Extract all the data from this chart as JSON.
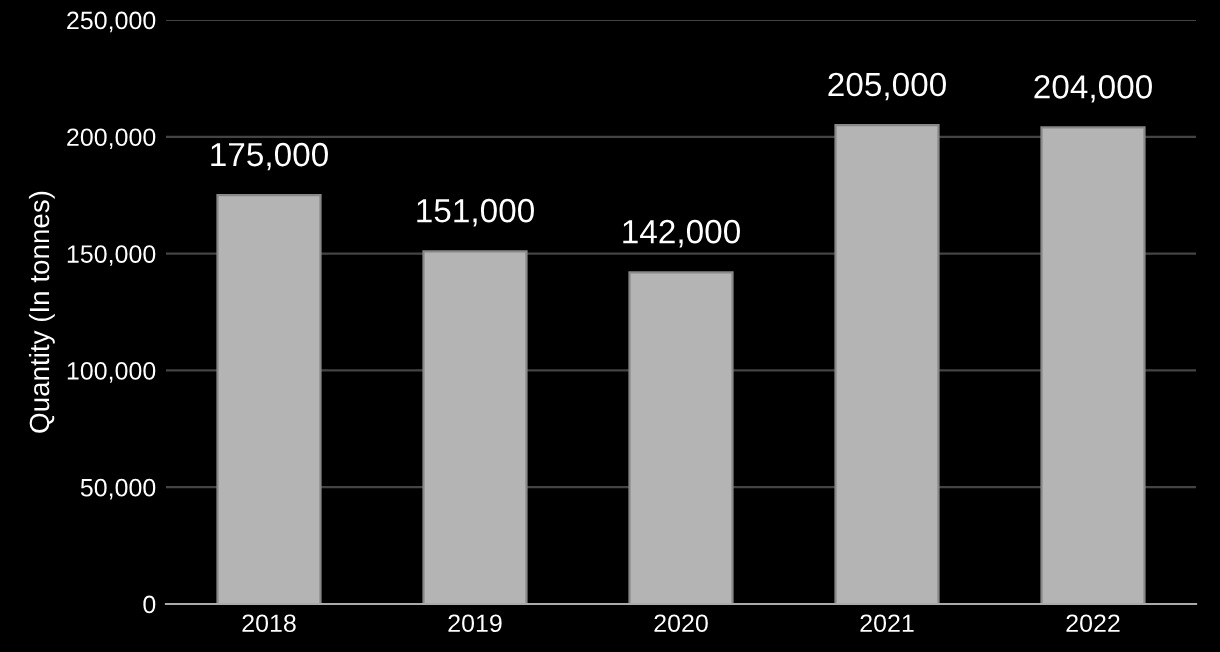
{
  "chart_data": {
    "type": "bar",
    "ylabel": "Quantity (In tonnes)",
    "categories": [
      "2018",
      "2019",
      "2020",
      "2021",
      "2022"
    ],
    "values": [
      175000,
      151000,
      142000,
      205000,
      204000
    ],
    "value_labels": [
      "175,000",
      "151,000",
      "142,000",
      "205,000",
      "204,000"
    ],
    "color": "#b4b4b4",
    "ylim": [
      0,
      250000
    ],
    "yticks": [
      0,
      {
        "value": 50000,
        "label": "50,000"
      },
      {
        "value": 100000,
        "label": "100,000"
      },
      {
        "value": 150000,
        "label": "150,000"
      },
      {
        "value": 200000,
        "label": "200,000"
      },
      {
        "value": 250000,
        "label": "250,000"
      }
    ],
    "grid": "y",
    "legend": false
  }
}
